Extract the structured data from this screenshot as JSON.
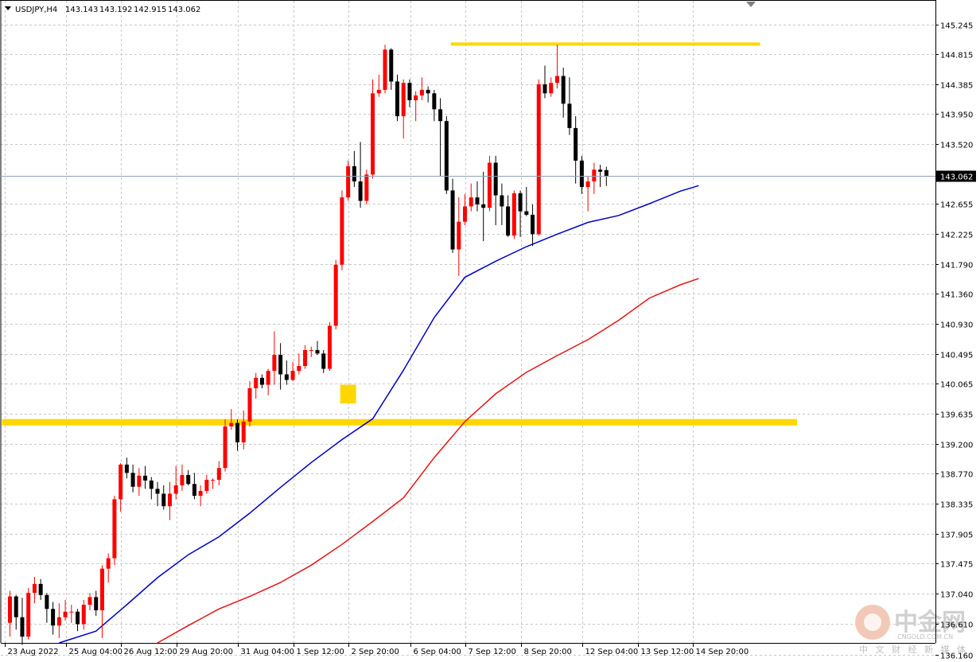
{
  "header": {
    "symbol": "USDJPY,H4",
    "open": "143.143",
    "high": "143.192",
    "low": "142.915",
    "close": "143.062"
  },
  "watermark": {
    "brand": "中金网",
    "site": "CNGOLD.COM.CN",
    "subtitle": "中 文 财 经 新 媒 体"
  },
  "colors": {
    "bull": "#ff0000",
    "bear": "#000000",
    "ma_fast": "#0000c8",
    "ma_slow": "#e61414",
    "level": "#ffd700",
    "marker": "#ffd700"
  },
  "chart_data": {
    "type": "candlestick",
    "current_price": 143.062,
    "ylim": [
      136.33,
      145.4
    ],
    "y_ticks": [
      "145.245",
      "144.815",
      "144.385",
      "143.950",
      "143.520",
      "143.062",
      "142.655",
      "142.225",
      "141.790",
      "141.360",
      "140.930",
      "140.495",
      "140.065",
      "139.635",
      "139.200",
      "138.770",
      "138.335",
      "137.905",
      "137.475",
      "137.040",
      "136.610",
      "136.160"
    ],
    "x_ticks": [
      {
        "label": "23 Aug 2022",
        "index": 0
      },
      {
        "label": "25 Aug 04:00",
        "index": 10
      },
      {
        "label": "26 Aug 12:00",
        "index": 19
      },
      {
        "label": "29 Aug 20:00",
        "index": 28
      },
      {
        "label": "31 Aug 04:00",
        "index": 38
      },
      {
        "label": "1 Sep 12:00",
        "index": 47
      },
      {
        "label": "2 Sep 20:00",
        "index": 56
      },
      {
        "label": "6 Sep 04:00",
        "index": 66
      },
      {
        "label": "7 Sep 12:00",
        "index": 75
      },
      {
        "label": "8 Sep 20:00",
        "index": 84
      },
      {
        "label": "12 Sep 04:00",
        "index": 94
      },
      {
        "label": "13 Sep 12:00",
        "index": 103
      },
      {
        "label": "14 Sep 20:00",
        "index": 112
      }
    ],
    "candles": [
      [
        136.62,
        137.08,
        136.42,
        137.0
      ],
      [
        137.0,
        137.02,
        136.52,
        136.7
      ],
      [
        136.7,
        136.98,
        136.3,
        136.42
      ],
      [
        136.42,
        137.12,
        136.38,
        137.05
      ],
      [
        137.05,
        137.28,
        136.9,
        137.18
      ],
      [
        137.18,
        137.25,
        136.95,
        137.02
      ],
      [
        137.02,
        137.05,
        136.62,
        136.82
      ],
      [
        136.82,
        136.92,
        136.45,
        136.58
      ],
      [
        136.58,
        136.9,
        136.4,
        136.7
      ],
      [
        136.7,
        136.95,
        136.65,
        136.78
      ],
      [
        136.78,
        136.88,
        136.62,
        136.78
      ],
      [
        136.78,
        136.82,
        136.5,
        136.6
      ],
      [
        136.6,
        136.95,
        136.52,
        136.88
      ],
      [
        136.88,
        137.05,
        136.8,
        136.99
      ],
      [
        136.99,
        137.08,
        136.72,
        136.8
      ],
      [
        136.8,
        137.45,
        136.4,
        137.4
      ],
      [
        137.4,
        137.62,
        137.2,
        137.55
      ],
      [
        137.55,
        138.45,
        137.45,
        138.4
      ],
      [
        138.4,
        138.92,
        138.22,
        138.9
      ],
      [
        138.9,
        139.0,
        138.7,
        138.78
      ],
      [
        138.78,
        138.9,
        138.5,
        138.58
      ],
      [
        138.58,
        138.85,
        138.45,
        138.74
      ],
      [
        138.74,
        138.88,
        138.55,
        138.67
      ],
      [
        138.67,
        138.72,
        138.4,
        138.55
      ],
      [
        138.55,
        138.65,
        138.3,
        138.48
      ],
      [
        138.48,
        138.6,
        138.25,
        138.3
      ],
      [
        138.3,
        138.65,
        138.1,
        138.48
      ],
      [
        138.48,
        138.88,
        138.4,
        138.6
      ],
      [
        138.6,
        138.9,
        138.52,
        138.75
      ],
      [
        138.75,
        138.82,
        138.6,
        138.62
      ],
      [
        138.62,
        138.78,
        138.4,
        138.45
      ],
      [
        138.45,
        138.6,
        138.3,
        138.52
      ],
      [
        138.52,
        138.75,
        138.48,
        138.68
      ],
      [
        138.68,
        138.7,
        138.55,
        138.68
      ],
      [
        138.68,
        138.95,
        138.6,
        138.85
      ],
      [
        138.85,
        139.55,
        138.8,
        139.45
      ],
      [
        139.45,
        139.7,
        139.4,
        139.5
      ],
      [
        139.5,
        139.55,
        139.1,
        139.22
      ],
      [
        139.22,
        139.68,
        139.12,
        139.52
      ],
      [
        139.52,
        140.1,
        139.45,
        140.0
      ],
      [
        140.0,
        140.22,
        139.85,
        140.15
      ],
      [
        140.15,
        140.2,
        140.0,
        140.05
      ],
      [
        140.05,
        140.28,
        139.9,
        140.25
      ],
      [
        140.25,
        140.82,
        140.05,
        140.48
      ],
      [
        140.48,
        140.65,
        139.98,
        140.2
      ],
      [
        140.2,
        140.4,
        140.05,
        140.12
      ],
      [
        140.12,
        140.38,
        140.1,
        140.25
      ],
      [
        140.25,
        140.5,
        140.2,
        140.32
      ],
      [
        140.32,
        140.62,
        140.28,
        140.55
      ],
      [
        140.55,
        140.6,
        140.45,
        140.55
      ],
      [
        140.55,
        140.68,
        140.48,
        140.5
      ],
      [
        140.5,
        140.55,
        140.22,
        140.28
      ],
      [
        140.28,
        140.95,
        140.25,
        140.9
      ],
      [
        140.9,
        141.85,
        140.85,
        141.78
      ],
      [
        141.78,
        142.85,
        141.7,
        142.75
      ],
      [
        142.75,
        143.28,
        142.7,
        143.2
      ],
      [
        143.2,
        143.42,
        142.9,
        142.98
      ],
      [
        142.98,
        143.55,
        142.6,
        142.7
      ],
      [
        142.7,
        143.15,
        142.65,
        143.08
      ],
      [
        143.08,
        144.45,
        143.02,
        144.25
      ],
      [
        144.25,
        144.52,
        144.2,
        144.3
      ],
      [
        144.3,
        144.95,
        144.25,
        144.88
      ],
      [
        144.88,
        144.9,
        144.3,
        144.42
      ],
      [
        144.42,
        144.52,
        143.85,
        143.92
      ],
      [
        143.92,
        144.45,
        143.6,
        144.4
      ],
      [
        144.4,
        144.45,
        144.05,
        144.15
      ],
      [
        144.15,
        144.28,
        143.85,
        144.22
      ],
      [
        144.22,
        144.48,
        144.15,
        144.3
      ],
      [
        144.3,
        144.35,
        144.12,
        144.25
      ],
      [
        144.25,
        144.3,
        143.85,
        144.02
      ],
      [
        144.02,
        144.18,
        143.05,
        143.85
      ],
      [
        143.85,
        143.92,
        142.8,
        142.85
      ],
      [
        142.85,
        143.02,
        141.95,
        142.0
      ],
      [
        142.0,
        142.75,
        141.62,
        142.4
      ],
      [
        142.4,
        142.8,
        142.35,
        142.62
      ],
      [
        142.62,
        142.95,
        142.55,
        142.75
      ],
      [
        142.75,
        142.98,
        142.55,
        142.65
      ],
      [
        142.65,
        143.12,
        142.12,
        142.6
      ],
      [
        142.6,
        143.35,
        142.55,
        143.25
      ],
      [
        143.25,
        143.35,
        142.35,
        142.78
      ],
      [
        142.78,
        142.95,
        142.35,
        142.62
      ],
      [
        142.62,
        142.78,
        142.18,
        142.2
      ],
      [
        142.2,
        142.85,
        142.15,
        142.81
      ],
      [
        142.81,
        142.85,
        142.18,
        142.55
      ],
      [
        142.55,
        142.9,
        142.48,
        142.5
      ],
      [
        142.5,
        142.65,
        142.05,
        142.22
      ],
      [
        142.22,
        144.45,
        142.2,
        144.38
      ],
      [
        144.38,
        144.65,
        144.18,
        144.25
      ],
      [
        144.25,
        144.48,
        144.2,
        144.4
      ],
      [
        144.4,
        144.95,
        144.32,
        144.5
      ],
      [
        144.5,
        144.62,
        143.9,
        144.1
      ],
      [
        144.1,
        144.48,
        143.65,
        143.75
      ],
      [
        143.75,
        143.92,
        142.95,
        143.28
      ],
      [
        143.28,
        143.35,
        142.8,
        142.9
      ],
      [
        142.9,
        143.05,
        142.55,
        142.98
      ],
      [
        142.98,
        143.25,
        142.8,
        143.15
      ],
      [
        143.15,
        143.22,
        142.9,
        143.12
      ],
      [
        143.143,
        143.192,
        142.915,
        143.062
      ]
    ],
    "series": [
      {
        "name": "",
        "type": "line",
        "x": [
          8,
          14,
          19,
          24,
          29,
          34,
          39,
          44,
          49,
          54,
          59,
          64,
          69,
          74,
          79,
          84,
          89,
          94,
          99,
          104,
          109,
          112
        ],
        "values": [
          136.33,
          136.5,
          136.88,
          137.27,
          137.6,
          137.86,
          138.2,
          138.57,
          138.93,
          139.26,
          139.56,
          140.26,
          141.02,
          141.6,
          141.83,
          142.04,
          142.22,
          142.39,
          142.49,
          142.66,
          142.84,
          142.92
        ]
      },
      {
        "name": "",
        "type": "line",
        "x": [
          24,
          29,
          34,
          39,
          44,
          49,
          54,
          59,
          64,
          69,
          74,
          79,
          84,
          89,
          94,
          99,
          104,
          109,
          112
        ],
        "values": [
          136.33,
          136.58,
          136.82,
          137.0,
          137.2,
          137.45,
          137.75,
          138.08,
          138.42,
          139.0,
          139.52,
          139.92,
          140.23,
          140.47,
          140.7,
          140.98,
          141.3,
          141.49,
          141.58
        ]
      }
    ],
    "levels": [
      {
        "price": 144.96,
        "from": 73,
        "to": 122,
        "thickness": 4
      },
      {
        "price": 139.51,
        "from": 0,
        "to": 128,
        "thickness": 8
      }
    ],
    "markers": [
      {
        "index": 55,
        "price_top": 140.05,
        "price_bottom": 139.78
      }
    ]
  }
}
